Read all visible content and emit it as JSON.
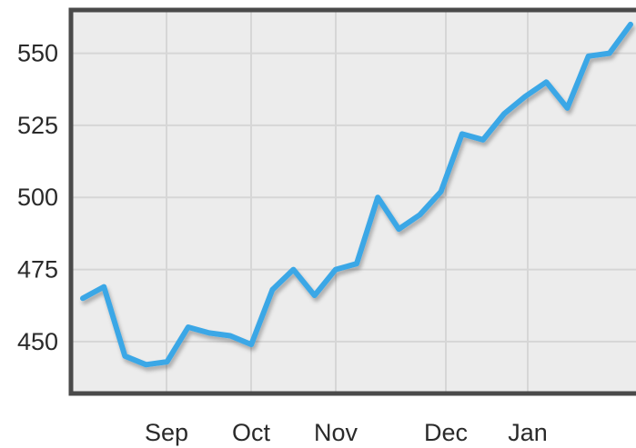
{
  "chart_data": {
    "type": "line",
    "title": "",
    "xlabel": "",
    "ylabel": "",
    "x_tick_labels": [
      "Sep",
      "Oct",
      "Nov",
      "Dec",
      "Jan"
    ],
    "y_ticks": [
      450,
      475,
      500,
      525,
      550
    ],
    "ylim": [
      432,
      565
    ],
    "grid": true,
    "series": [
      {
        "color": "#3aa7e6",
        "values": [
          465,
          469,
          445,
          442,
          443,
          455,
          453,
          452,
          449,
          468,
          475,
          466,
          475,
          477,
          500,
          489,
          494,
          502,
          522,
          520,
          529,
          535,
          540,
          531,
          549,
          550,
          560
        ]
      }
    ]
  },
  "colors": {
    "plot_background": "#ececec",
    "grid": "#d6d6d6",
    "axis": "#4a4a4a",
    "line": "#3aa7e6"
  }
}
